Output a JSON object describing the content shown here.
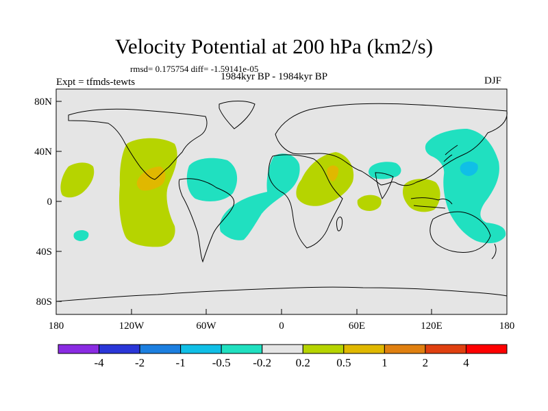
{
  "title": "Velocity Potential at 200 hPa (km2/s)",
  "stats_text": "rmsd= 0.175754 diff= -1.59141e-05",
  "left_label": "Expt = tfmds-tewts",
  "center_label": "1984kyr BP - 1984kyr BP",
  "right_label": "DJF",
  "map": {
    "projection": "cylindrical-equidistant",
    "background_color": "#e5e5e5",
    "lat_ticks": [
      "80N",
      "40N",
      "0",
      "40S",
      "80S"
    ],
    "lon_ticks": [
      "180",
      "120W",
      "60W",
      "0",
      "60E",
      "120E",
      "180"
    ]
  },
  "colorbar": {
    "colors": [
      "#8a2be2",
      "#2a36d8",
      "#1c7fe0",
      "#10bfe6",
      "#20e0c0",
      "#e5e5e5",
      "#b6d400",
      "#e0b800",
      "#e08010",
      "#e04010",
      "#ff0000"
    ],
    "labels": [
      "-4",
      "-2",
      "-1",
      "-0.5",
      "-0.2",
      "0.2",
      "0.5",
      "1",
      "2",
      "4"
    ]
  }
}
